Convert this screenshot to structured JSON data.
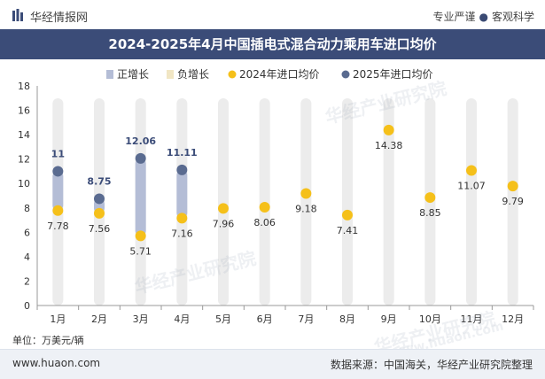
{
  "header": {
    "brand": "华经情报网",
    "tagline_a": "专业严谨",
    "tagline_b": "客观科学"
  },
  "title": "2024-2025年4月中国插电式混合动力乘用车进口均价",
  "unit_label": "单位：万美元/辆",
  "footer": {
    "website": "www.huaon.com",
    "source": "数据来源：中国海关，华经产业研究院整理"
  },
  "watermarks": [
    "华经产业研究院",
    "华经产业研究院",
    "华经产业研究院",
    "www.huaon.com"
  ],
  "colors": {
    "title_bg": "#3b4c78",
    "positive_bar": "#b4bdd6",
    "negative_bar": "#f1e6c4",
    "series_2024": "#f5c01a",
    "series_2025": "#5a6b90",
    "background_band": "#ececec"
  },
  "chart_data": {
    "type": "scatter",
    "categories": [
      "1月",
      "2月",
      "3月",
      "4月",
      "5月",
      "6月",
      "7月",
      "8月",
      "9月",
      "10月",
      "11月",
      "12月"
    ],
    "legend": [
      "正增长",
      "负增长",
      "2024年进口均价",
      "2025年进口均价"
    ],
    "legend_position": "top",
    "ylim": [
      0,
      18
    ],
    "yticks": [
      0,
      2,
      4,
      6,
      8,
      10,
      12,
      14,
      16,
      18
    ],
    "series": [
      {
        "name": "2024年进口均价",
        "values": [
          7.78,
          7.56,
          5.71,
          7.16,
          7.96,
          8.06,
          9.18,
          7.41,
          14.38,
          8.85,
          11.07,
          9.79
        ]
      },
      {
        "name": "2025年进口均价",
        "values": [
          11,
          8.75,
          12.06,
          11.11,
          null,
          null,
          null,
          null,
          null,
          null,
          null,
          null
        ]
      }
    ],
    "label_texts_2024": [
      "7.78",
      "7.56",
      "5.71",
      "7.16",
      "7.96",
      "8.06",
      "9.18",
      "7.41",
      "14.38",
      "8.85",
      "11.07",
      "9.79"
    ],
    "label_texts_2025": [
      "11",
      "8.75",
      "12.06",
      "11.11"
    ]
  }
}
